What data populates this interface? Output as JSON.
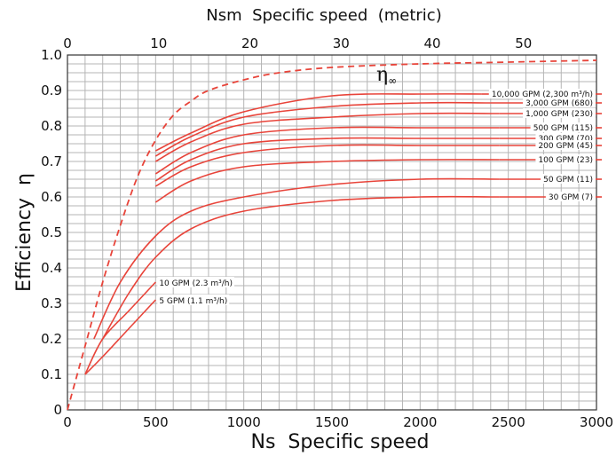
{
  "chart_data": {
    "type": "line",
    "xlabel": "Ns  Specific speed",
    "ylabel": "Efficiency  η",
    "x2label": "Nsm  Specific speed  (metric)",
    "xlim": [
      0,
      3000
    ],
    "ylim": [
      0,
      1.0
    ],
    "x2lim": [
      0,
      58
    ],
    "x_ticks": [
      0,
      500,
      1000,
      1500,
      2000,
      2500,
      3000
    ],
    "x2_ticks": [
      0,
      10,
      20,
      30,
      40,
      50
    ],
    "y_ticks": [
      0,
      0.1,
      0.2,
      0.3,
      0.4,
      0.5,
      0.6,
      0.7,
      0.8,
      0.9,
      1.0
    ],
    "x_tick_labels": [
      "0",
      "500",
      "1000",
      "1500",
      "2000",
      "2500",
      "3000"
    ],
    "x2_tick_labels": [
      "0",
      "10",
      "20",
      "30",
      "40",
      "50"
    ],
    "y_tick_labels": [
      "0",
      "0.1",
      "0.2",
      "0.3",
      "0.4",
      "0.5",
      "0.6",
      "0.7",
      "0.8",
      "0.9",
      "1.0"
    ],
    "grid": true,
    "line_color": "#e8443a",
    "eta_label": "η",
    "eta_subscript": "∞",
    "limit_curve": {
      "x": [
        0,
        100,
        200,
        300,
        400,
        500,
        600,
        700,
        800,
        1000,
        1200,
        1500,
        2000,
        2500,
        3000
      ],
      "y": [
        0,
        0.18,
        0.36,
        0.52,
        0.66,
        0.76,
        0.83,
        0.87,
        0.9,
        0.93,
        0.95,
        0.965,
        0.975,
        0.98,
        0.985
      ]
    },
    "series": [
      {
        "name": "10,000 GPM (2,300 m³/h)",
        "x": [
          500,
          700,
          1000,
          1500,
          2000,
          2350
        ],
        "y": [
          0.73,
          0.78,
          0.84,
          0.885,
          0.89,
          0.89
        ]
      },
      {
        "name": "3,000 GPM (680)",
        "x": [
          500,
          700,
          1000,
          1500,
          2000,
          2400
        ],
        "y": [
          0.715,
          0.77,
          0.825,
          0.855,
          0.865,
          0.865
        ]
      },
      {
        "name": "1,000 GPM (230)",
        "x": [
          500,
          700,
          1000,
          1500,
          2000,
          2450
        ],
        "y": [
          0.7,
          0.755,
          0.805,
          0.825,
          0.835,
          0.835
        ]
      },
      {
        "name": "500 GPM (115)",
        "x": [
          500,
          700,
          1000,
          1500,
          2000,
          2450
        ],
        "y": [
          0.665,
          0.725,
          0.775,
          0.795,
          0.795,
          0.795
        ]
      },
      {
        "name": "300 GPM (70)",
        "x": [
          500,
          700,
          1000,
          1500,
          2000,
          2450
        ],
        "y": [
          0.645,
          0.705,
          0.75,
          0.765,
          0.765,
          0.765
        ]
      },
      {
        "name": "200 GPM (45)",
        "x": [
          500,
          700,
          1000,
          1500,
          2000,
          2450
        ],
        "y": [
          0.63,
          0.685,
          0.725,
          0.745,
          0.745,
          0.745
        ]
      },
      {
        "name": "100 GPM (23)",
        "x": [
          500,
          700,
          1000,
          1500,
          2000,
          2450
        ],
        "y": [
          0.585,
          0.645,
          0.685,
          0.7,
          0.705,
          0.705
        ]
      },
      {
        "name": "50 GPM (11)",
        "x": [
          150,
          300,
          500,
          700,
          1000,
          1500,
          2000,
          2450
        ],
        "y": [
          0.2,
          0.36,
          0.49,
          0.56,
          0.6,
          0.635,
          0.65,
          0.65
        ]
      },
      {
        "name": "30 GPM (7)",
        "x": [
          200,
          350,
          500,
          700,
          1000,
          1500,
          2000,
          2450
        ],
        "y": [
          0.2,
          0.33,
          0.43,
          0.51,
          0.56,
          0.59,
          0.6,
          0.6
        ]
      },
      {
        "name": "10 GPM (2.3 m³/h)",
        "x": [
          100,
          200,
          350,
          500
        ],
        "y": [
          0.1,
          0.2,
          0.28,
          0.36
        ]
      },
      {
        "name": "5 GPM (1.1 m³/h)",
        "x": [
          100,
          200,
          350,
          500
        ],
        "y": [
          0.1,
          0.15,
          0.23,
          0.31
        ]
      }
    ]
  }
}
